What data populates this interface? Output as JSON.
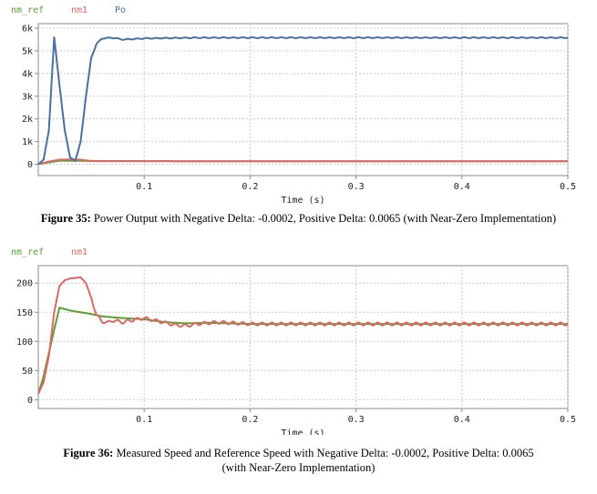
{
  "colors": {
    "nm_ref": "#5aa02c",
    "nm1": "#e06666",
    "Po": "#4a6fa5",
    "grid": "#cccccc",
    "axis": "#888888"
  },
  "captions": [
    {
      "label": "Figure 35:",
      "text": " Power Output with Negative Delta: -0.0002, Positive Delta: 0.0065 (with Near-Zero Implementation)"
    },
    {
      "label": "Figure 36:",
      "text": " Measured Speed and Reference Speed with Negative Delta: -0.0002, Positive Delta: 0.0065 (with Near-Zero Implementation)"
    }
  ],
  "chart_data": [
    {
      "type": "line",
      "xlabel": "Time (s)",
      "ylabel": "",
      "xlim": [
        0,
        0.5
      ],
      "ylim": [
        -500,
        6200
      ],
      "xticks": [
        0.1,
        0.2,
        0.3,
        0.4,
        0.5
      ],
      "xtick_labels": [
        "0.1",
        "0.2",
        "0.3",
        "0.4",
        "0.5"
      ],
      "yticks": [
        0,
        1000,
        2000,
        3000,
        4000,
        5000,
        6000
      ],
      "ytick_labels": [
        "0",
        "1k",
        "2k",
        "3k",
        "4k",
        "5k",
        "6k"
      ],
      "legend_position": "top-left",
      "series": [
        {
          "name": "nm_ref",
          "color": "#5aa02c",
          "x": [
            0,
            0.01,
            0.02,
            0.03,
            0.05,
            0.1,
            0.2,
            0.3,
            0.4,
            0.5
          ],
          "y": [
            10,
            80,
            158,
            152,
            145,
            138,
            130,
            130,
            130,
            130
          ]
        },
        {
          "name": "nm1",
          "color": "#e06666",
          "x": [
            0,
            0.01,
            0.02,
            0.03,
            0.04,
            0.05,
            0.1,
            0.2,
            0.3,
            0.4,
            0.5
          ],
          "y": [
            10,
            120,
            200,
            210,
            200,
            140,
            138,
            130,
            130,
            130,
            130
          ]
        },
        {
          "name": "Po",
          "color": "#4a6fa5",
          "x": [
            0,
            0.005,
            0.01,
            0.015,
            0.02,
            0.025,
            0.03,
            0.035,
            0.04,
            0.045,
            0.05,
            0.055,
            0.06,
            0.07,
            0.08,
            0.1,
            0.15,
            0.2,
            0.3,
            0.4,
            0.5
          ],
          "y": [
            0,
            200,
            1500,
            5600,
            3500,
            1500,
            300,
            150,
            1000,
            3000,
            4700,
            5300,
            5550,
            5580,
            5500,
            5550,
            5580,
            5580,
            5580,
            5580,
            5580
          ]
        }
      ]
    },
    {
      "type": "line",
      "xlabel": "Time (s)",
      "ylabel": "",
      "xlim": [
        0,
        0.5
      ],
      "ylim": [
        -15,
        230
      ],
      "xticks": [
        0.1,
        0.2,
        0.3,
        0.4,
        0.5
      ],
      "xtick_labels": [
        "0.1",
        "0.2",
        "0.3",
        "0.4",
        "0.5"
      ],
      "yticks": [
        0,
        50,
        100,
        150,
        200
      ],
      "ytick_labels": [
        "0",
        "50",
        "100",
        "150",
        "200"
      ],
      "legend_position": "top-left",
      "series": [
        {
          "name": "nm_ref",
          "color": "#5aa02c",
          "x": [
            0,
            0.005,
            0.01,
            0.015,
            0.02,
            0.03,
            0.04,
            0.05,
            0.06,
            0.08,
            0.1,
            0.12,
            0.14,
            0.16,
            0.2,
            0.3,
            0.4,
            0.5
          ],
          "y": [
            10,
            40,
            80,
            120,
            158,
            153,
            150,
            147,
            143,
            140,
            138,
            133,
            131,
            132,
            130,
            130,
            130,
            130
          ]
        },
        {
          "name": "nm1",
          "color": "#e06666",
          "x": [
            0,
            0.005,
            0.01,
            0.015,
            0.02,
            0.025,
            0.03,
            0.035,
            0.04,
            0.045,
            0.05,
            0.055,
            0.06,
            0.065,
            0.07,
            0.08,
            0.09,
            0.1,
            0.11,
            0.12,
            0.13,
            0.14,
            0.15,
            0.17,
            0.2,
            0.25,
            0.3,
            0.4,
            0.5
          ],
          "y": [
            10,
            30,
            75,
            150,
            195,
            205,
            208,
            209,
            210,
            200,
            175,
            145,
            135,
            132,
            136,
            133,
            137,
            140,
            136,
            132,
            128,
            127,
            130,
            133,
            130,
            130,
            130,
            130,
            130
          ]
        }
      ]
    }
  ]
}
